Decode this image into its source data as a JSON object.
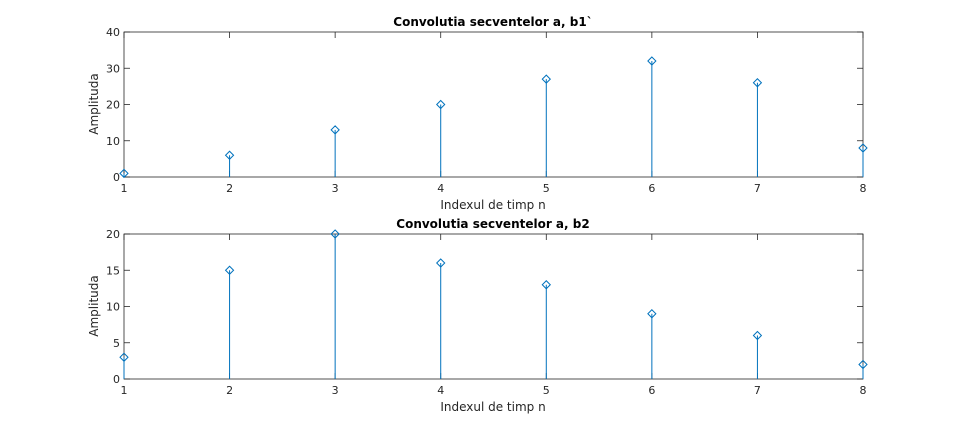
{
  "chart_data": [
    {
      "type": "stem",
      "title": "Convolutia secventelor a, b1`",
      "xlabel": "Indexul de timp n",
      "ylabel": "Amplituda",
      "xlim": [
        1,
        8
      ],
      "ylim": [
        0,
        40
      ],
      "xticks": [
        1,
        2,
        3,
        4,
        5,
        6,
        7,
        8
      ],
      "yticks": [
        0,
        10,
        20,
        30,
        40
      ],
      "grid": false,
      "marker": "diamond",
      "color": "#0072BD",
      "x": [
        1,
        2,
        3,
        4,
        5,
        6,
        7,
        8
      ],
      "values": [
        1,
        6,
        13,
        20,
        27,
        32,
        26,
        8
      ]
    },
    {
      "type": "stem",
      "title": "Convolutia secventelor a, b2",
      "xlabel": "Indexul de timp n",
      "ylabel": "Amplituda",
      "xlim": [
        1,
        8
      ],
      "ylim": [
        0,
        20
      ],
      "xticks": [
        1,
        2,
        3,
        4,
        5,
        6,
        7,
        8
      ],
      "yticks": [
        0,
        5,
        10,
        15,
        20
      ],
      "grid": false,
      "marker": "diamond",
      "color": "#0072BD",
      "x": [
        1,
        2,
        3,
        4,
        5,
        6,
        7,
        8
      ],
      "values": [
        3,
        15,
        20,
        16,
        13,
        9,
        6,
        2
      ]
    }
  ]
}
